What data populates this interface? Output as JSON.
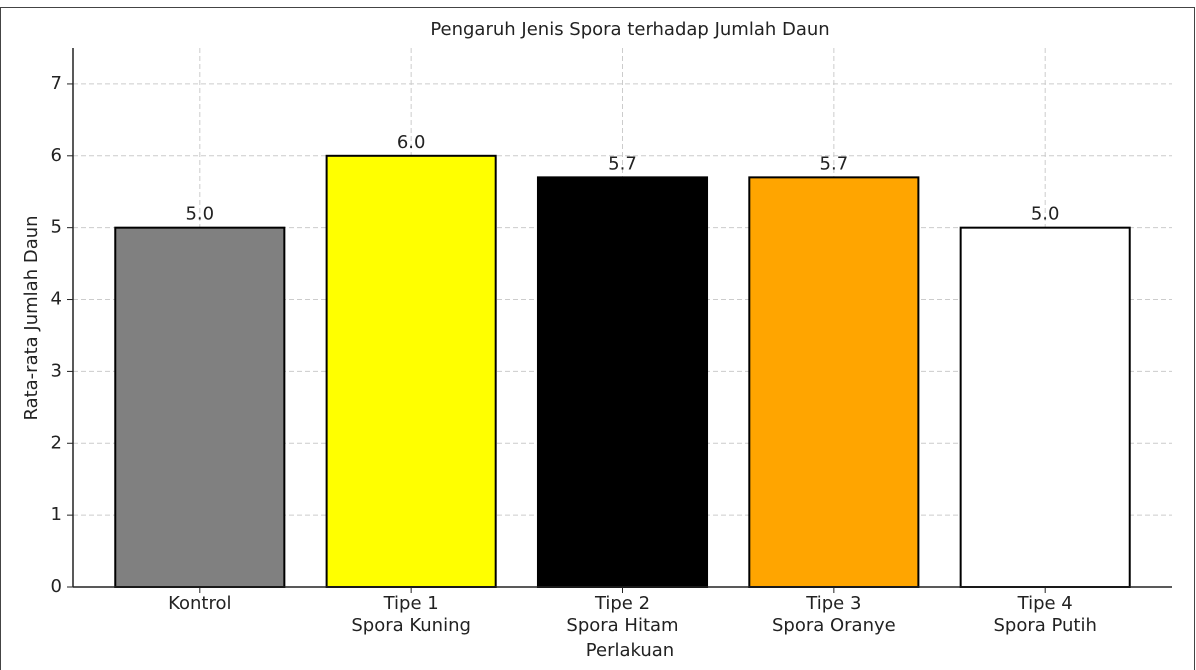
{
  "chart_data": {
    "type": "bar",
    "title": "Pengaruh Jenis Spora terhadap Jumlah Daun",
    "xlabel": "Perlakuan",
    "ylabel": "Rata-rata Jumlah Daun",
    "categories": [
      "Kontrol",
      "Tipe 1\nSpora Kuning",
      "Tipe 2\nSpora Hitam",
      "Tipe 3\nSpora Oranye",
      "Tipe 4\nSpora Putih"
    ],
    "values": [
      5,
      6,
      5.7,
      5.7,
      5
    ],
    "value_labels": [
      "5.0",
      "6.0",
      "5.7",
      "5.7",
      "5.0"
    ],
    "colors": [
      "#808080",
      "#ffff00",
      "#000000",
      "#ffa500",
      "#ffffff"
    ],
    "edgecolor": "#000000",
    "ylim": [
      0,
      7.5
    ],
    "yticks": [
      0,
      1,
      2,
      3,
      4,
      5,
      6,
      7
    ],
    "grid": true
  }
}
